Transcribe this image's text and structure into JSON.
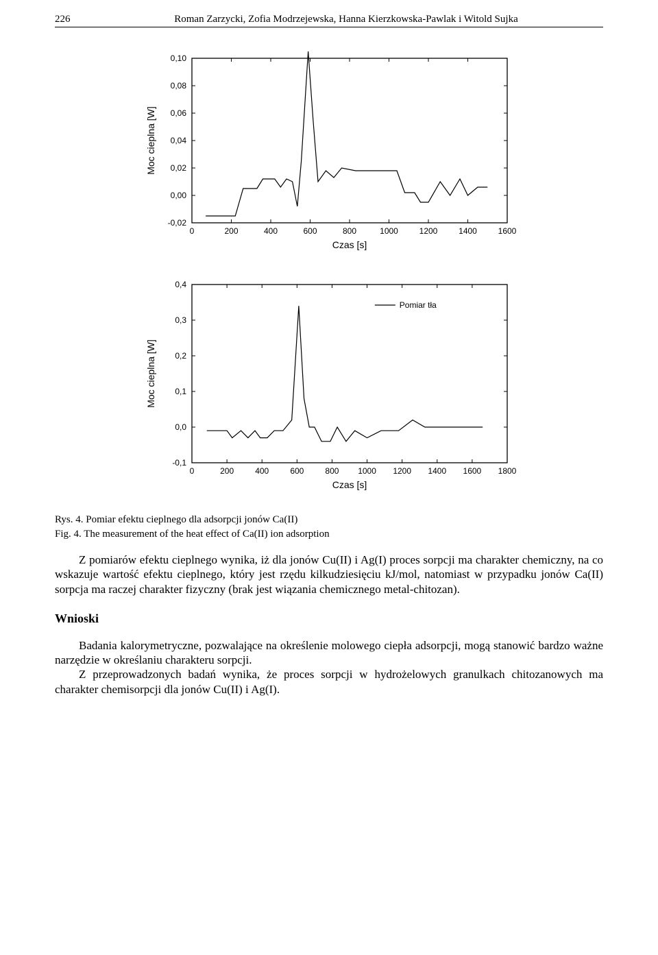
{
  "header": {
    "page_number": "226",
    "authors": "Roman Zarzycki, Zofia Modrzejewska, Hanna Kierzkowska-Pawlak i Witold Sujka"
  },
  "chart1": {
    "type": "line",
    "ylabel": "Moc cieplna [W]",
    "xlabel": "Czas [s]",
    "xlim": [
      0,
      1600
    ],
    "ylim": [
      -0.02,
      0.1
    ],
    "xticks": [
      0,
      200,
      400,
      600,
      800,
      1000,
      1200,
      1400,
      1600
    ],
    "yticks": [
      -0.02,
      0.0,
      0.02,
      0.04,
      0.06,
      0.08,
      0.1
    ],
    "ytick_labels": [
      "-0,02",
      "0,00",
      "0,02",
      "0,04",
      "0,06",
      "0,08",
      "0,10"
    ],
    "line_color": "#000000",
    "background_color": "#ffffff",
    "line_width": 1.2,
    "label_fontsize": 14,
    "tick_fontsize": 12,
    "data": [
      [
        70,
        -0.015
      ],
      [
        220,
        -0.015
      ],
      [
        260,
        0.005
      ],
      [
        330,
        0.005
      ],
      [
        360,
        0.012
      ],
      [
        420,
        0.012
      ],
      [
        450,
        0.006
      ],
      [
        480,
        0.012
      ],
      [
        510,
        0.01
      ],
      [
        535,
        -0.008
      ],
      [
        555,
        0.025
      ],
      [
        590,
        0.105
      ],
      [
        615,
        0.055
      ],
      [
        640,
        0.01
      ],
      [
        680,
        0.018
      ],
      [
        720,
        0.013
      ],
      [
        760,
        0.02
      ],
      [
        830,
        0.018
      ],
      [
        1040,
        0.018
      ],
      [
        1080,
        0.002
      ],
      [
        1130,
        0.002
      ],
      [
        1160,
        -0.005
      ],
      [
        1200,
        -0.005
      ],
      [
        1260,
        0.01
      ],
      [
        1310,
        0.0
      ],
      [
        1360,
        0.012
      ],
      [
        1400,
        0.0
      ],
      [
        1450,
        0.006
      ],
      [
        1500,
        0.006
      ]
    ]
  },
  "chart2": {
    "type": "line",
    "ylabel": "Moc cieplna [W]",
    "xlabel": "Czas [s]",
    "legend_label": "Pomiar tła",
    "xlim": [
      0,
      1800
    ],
    "ylim": [
      -0.1,
      0.4
    ],
    "xticks": [
      0,
      200,
      400,
      600,
      800,
      1000,
      1200,
      1400,
      1600,
      1800
    ],
    "yticks": [
      -0.1,
      0.0,
      0.1,
      0.2,
      0.3,
      0.4
    ],
    "ytick_labels": [
      "-0,1",
      "0,0",
      "0,1",
      "0,2",
      "0,3",
      "0,4"
    ],
    "line_color": "#000000",
    "background_color": "#ffffff",
    "line_width": 1.2,
    "label_fontsize": 14,
    "tick_fontsize": 12,
    "data": [
      [
        85,
        -0.01
      ],
      [
        200,
        -0.01
      ],
      [
        230,
        -0.03
      ],
      [
        280,
        -0.01
      ],
      [
        320,
        -0.03
      ],
      [
        360,
        -0.01
      ],
      [
        390,
        -0.03
      ],
      [
        430,
        -0.03
      ],
      [
        470,
        -0.01
      ],
      [
        520,
        -0.01
      ],
      [
        570,
        0.02
      ],
      [
        610,
        0.34
      ],
      [
        640,
        0.08
      ],
      [
        670,
        0.0
      ],
      [
        700,
        0.0
      ],
      [
        740,
        -0.04
      ],
      [
        790,
        -0.04
      ],
      [
        830,
        0.0
      ],
      [
        880,
        -0.04
      ],
      [
        930,
        -0.01
      ],
      [
        1000,
        -0.03
      ],
      [
        1080,
        -0.01
      ],
      [
        1180,
        -0.01
      ],
      [
        1260,
        0.02
      ],
      [
        1330,
        0.0
      ],
      [
        1430,
        0.0
      ],
      [
        1660,
        0.0
      ]
    ]
  },
  "captions": {
    "pl": "Rys. 4. Pomiar efektu cieplnego dla adsorpcji jonów Ca(II)",
    "en": "Fig. 4. The measurement of the heat effect of Ca(II) ion adsorption"
  },
  "paragraphs": {
    "p1": "Z pomiarów efektu cieplnego wynika, iż dla jonów Cu(II) i Ag(I) proces sorpcji ma charakter chemiczny, na co wskazuje wartość efektu cieplnego, który jest rzędu kilkudziesięciu kJ/mol, natomiast w przypadku jonów Ca(II) sorpcja ma raczej charakter fizyczny (brak jest wiązania chemicznego metal-chitozan).",
    "wnioski_title": "Wnioski",
    "p2": "Badania kalorymetryczne, pozwalające na określenie molowego ciepła adsorpcji, mogą stanowić bardzo ważne narzędzie w określaniu charakteru sorpcji.",
    "p3": "Z przeprowadzonych badań wynika, że proces sorpcji w hydrożelowych granulkach chitozanowych ma charakter chemisorpcji dla jonów Cu(II) i Ag(I)."
  }
}
